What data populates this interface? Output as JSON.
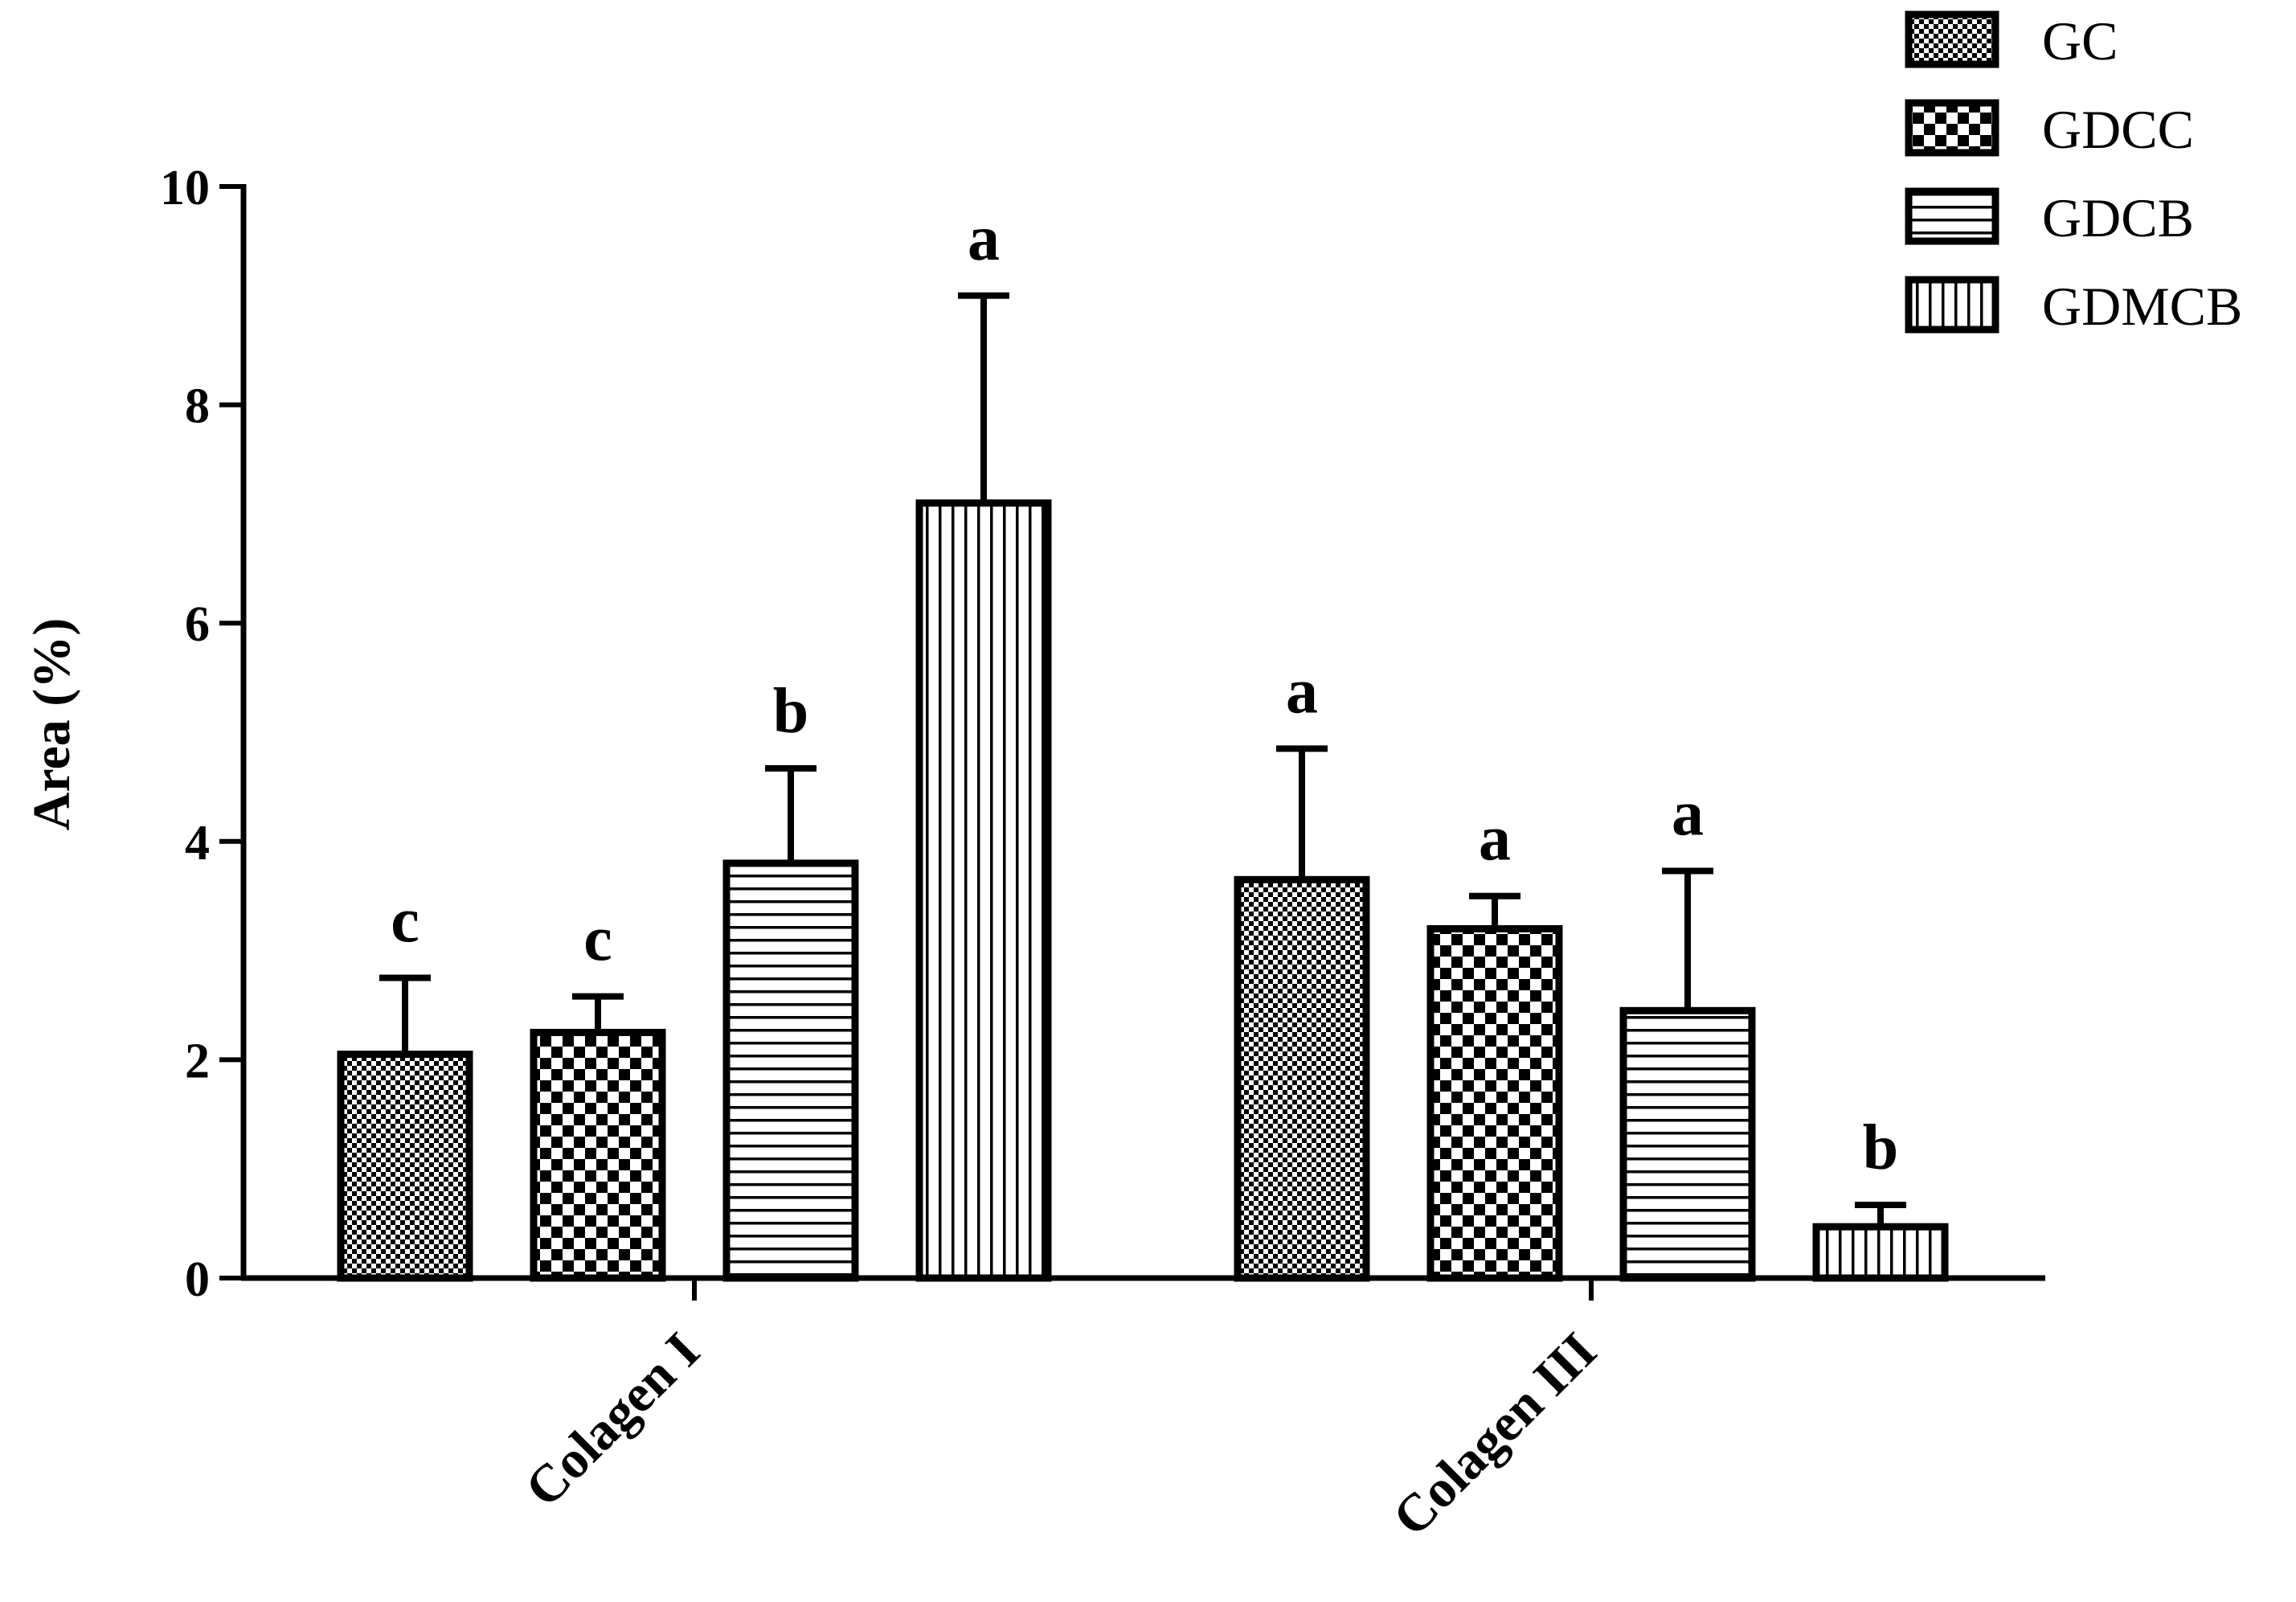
{
  "chart_data": {
    "type": "bar",
    "categories": [
      "Colagen I",
      "Colagen III"
    ],
    "series": [
      {
        "name": "GC",
        "pattern": "fine-check",
        "values": [
          2.05,
          3.65
        ],
        "errors": [
          0.7,
          1.2
        ],
        "letters": [
          "c",
          "a"
        ]
      },
      {
        "name": "GDCC",
        "pattern": "checker",
        "values": [
          2.25,
          3.2
        ],
        "errors": [
          0.33,
          0.3
        ],
        "letters": [
          "c",
          "a"
        ]
      },
      {
        "name": "GDCB",
        "pattern": "horizontal",
        "values": [
          3.8,
          2.45
        ],
        "errors": [
          0.87,
          1.28
        ],
        "letters": [
          "b",
          "a"
        ]
      },
      {
        "name": "GDMCB",
        "pattern": "vertical",
        "values": [
          7.1,
          0.47
        ],
        "errors": [
          1.9,
          0.2
        ],
        "letters": [
          "a",
          "b"
        ]
      }
    ],
    "ylabel": "Area (%)",
    "xlabel": "",
    "ylim": [
      0,
      10
    ],
    "yticks": [
      0,
      2,
      4,
      6,
      8,
      10
    ],
    "legend_position": "top-right",
    "grid": false
  }
}
